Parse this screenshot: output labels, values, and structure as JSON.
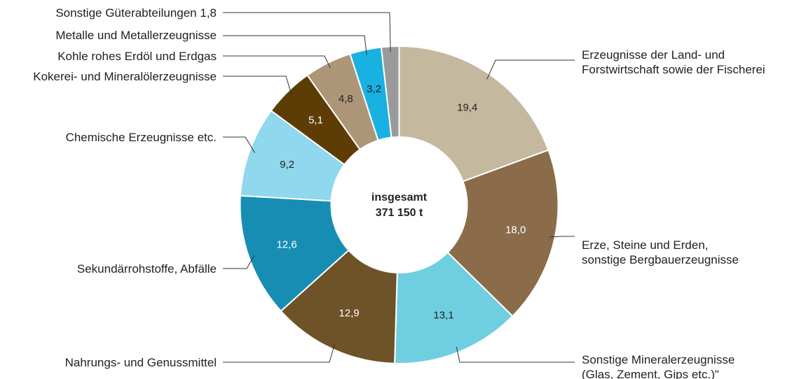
{
  "chart_data": {
    "type": "pie",
    "variant": "donut",
    "center_label": [
      "insgesamt",
      "371 150 t"
    ],
    "legend": "none (direct labels with leader lines)",
    "slices": [
      {
        "label": [
          "Erzeugnisse der Land- und",
          "Forstwirtschaft sowie der Fischerei"
        ],
        "value": 19.4,
        "value_label": "19,4",
        "color": "#c4b89f"
      },
      {
        "label": [
          "Erze, Steine und Erden,",
          "sonstige Bergbauerzeugnisse"
        ],
        "value": 18.0,
        "value_label": "18,0",
        "color": "#8a6c4a"
      },
      {
        "label": [
          "Sonstige Mineralerzeugnisse",
          "(Glas, Zement, Gips etc.)\""
        ],
        "value": 13.1,
        "value_label": "13,1",
        "color": "#6fcfe0"
      },
      {
        "label": [
          "Nahrungs- und Genussmittel"
        ],
        "value": 12.9,
        "value_label": "12,9",
        "color": "#6e5228"
      },
      {
        "label": [
          "Sekundärrohstoffe, Abfälle"
        ],
        "value": 12.6,
        "value_label": "12,6",
        "color": "#178db4"
      },
      {
        "label": [
          "Chemische Erzeugnisse etc."
        ],
        "value": 9.2,
        "value_label": "9,2",
        "color": "#8fd8ee"
      },
      {
        "label": [
          "Kokerei- und Mineralölerzeugnisse"
        ],
        "value": 5.1,
        "value_label": "5,1",
        "color": "#5e3c05"
      },
      {
        "label": [
          "Kohle rohes Erdöl und Erdgas"
        ],
        "value": 4.8,
        "value_label": "4,8",
        "color": "#ad9678"
      },
      {
        "label": [
          "Metalle und Metallerzeugnisse"
        ],
        "value": 3.2,
        "value_label": "3,2",
        "color": "#19b1e2"
      },
      {
        "label": [
          "Sonstige Güterabteilungen 1,8"
        ],
        "value": 1.8,
        "value_label": "",
        "color": "#9a9a9a"
      }
    ]
  }
}
